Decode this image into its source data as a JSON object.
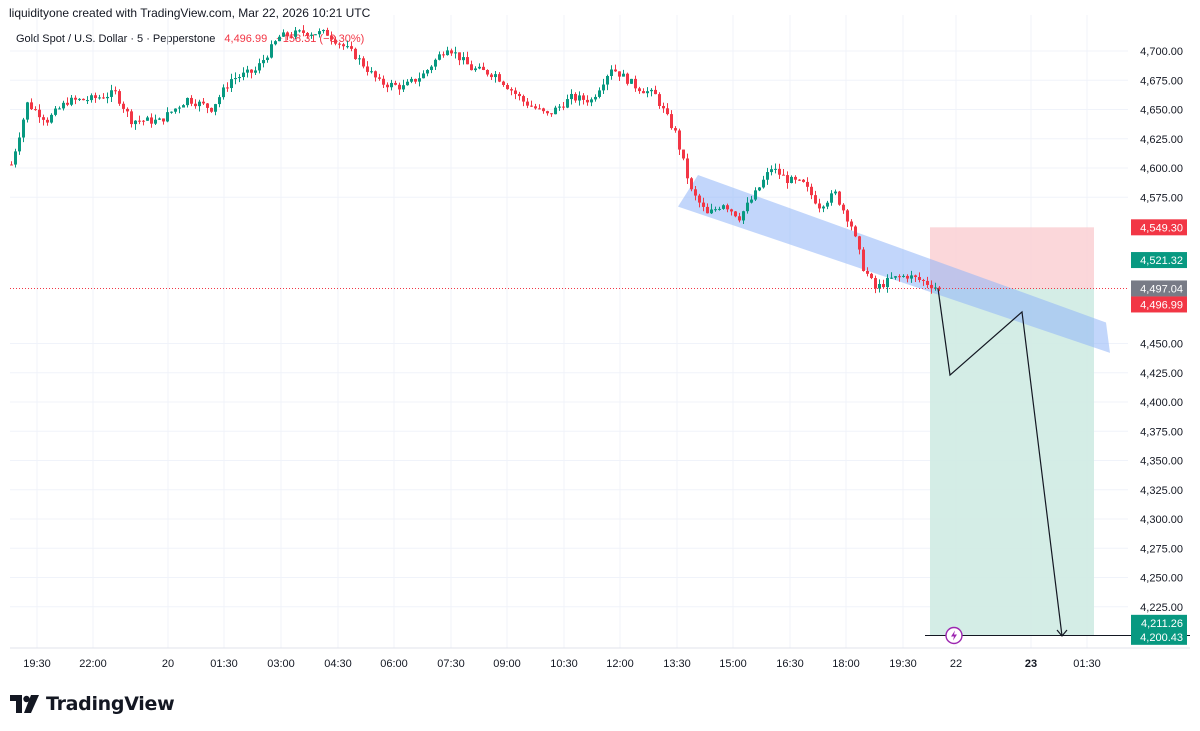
{
  "header": {
    "credit": "liquidityone created with TradingView.com, Mar 22, 2026 10:21 UTC",
    "symbol": "Gold Spot / U.S. Dollar · 5 · Pepperstone",
    "last_price": "4,496.99",
    "change": "−158.31 (−3.30%)"
  },
  "brand": {
    "name": "TradingView",
    "logo_icon": "tradingview-logo-icon"
  },
  "colors": {
    "up": "#089981",
    "down": "#f23645",
    "channel": "#90b4f7",
    "target_zone": "#cfebe3",
    "stop_zone": "#fbd3d6",
    "current_price": "#f23645"
  },
  "chart_data": {
    "type": "candlestick",
    "title": "Gold Spot / U.S. Dollar · 5 · Pepperstone",
    "x_tick_labels": [
      "19:30",
      "22:00",
      "20",
      "01:30",
      "03:00",
      "04:30",
      "06:00",
      "07:30",
      "09:00",
      "10:30",
      "12:00",
      "13:30",
      "15:00",
      "16:30",
      "18:00",
      "19:30",
      "22",
      "23",
      "01:30"
    ],
    "y_tick_labels": [
      "4,700.00",
      "4,675.00",
      "4,650.00",
      "4,625.00",
      "4,600.00",
      "4,575.00",
      "4,450.00",
      "4,425.00",
      "4,400.00",
      "4,375.00",
      "4,350.00",
      "4,325.00",
      "4,300.00",
      "4,275.00",
      "4,250.00",
      "4,225.00"
    ],
    "y_ticks": [
      4700,
      4675,
      4650,
      4625,
      4600,
      4575,
      4450,
      4425,
      4400,
      4375,
      4350,
      4325,
      4300,
      4275,
      4250,
      4225
    ],
    "ylim": [
      4186,
      4722
    ],
    "price_path": [
      {
        "x": 0,
        "y": 4603
      },
      {
        "x": 4,
        "y": 4655
      },
      {
        "x": 9,
        "y": 4641
      },
      {
        "x": 14,
        "y": 4657
      },
      {
        "x": 20,
        "y": 4659
      },
      {
        "x": 26,
        "y": 4664
      },
      {
        "x": 30,
        "y": 4641
      },
      {
        "x": 37,
        "y": 4640
      },
      {
        "x": 44,
        "y": 4659
      },
      {
        "x": 50,
        "y": 4651
      },
      {
        "x": 55,
        "y": 4676
      },
      {
        "x": 61,
        "y": 4683
      },
      {
        "x": 67,
        "y": 4712
      },
      {
        "x": 73,
        "y": 4716
      },
      {
        "x": 79,
        "y": 4715
      },
      {
        "x": 86,
        "y": 4696
      },
      {
        "x": 92,
        "y": 4673
      },
      {
        "x": 98,
        "y": 4669
      },
      {
        "x": 103,
        "y": 4680
      },
      {
        "x": 109,
        "y": 4704
      },
      {
        "x": 115,
        "y": 4685
      },
      {
        "x": 121,
        "y": 4680
      },
      {
        "x": 128,
        "y": 4657
      },
      {
        "x": 134,
        "y": 4645
      },
      {
        "x": 140,
        "y": 4660
      },
      {
        "x": 145,
        "y": 4658
      },
      {
        "x": 150,
        "y": 4686
      },
      {
        "x": 156,
        "y": 4670
      },
      {
        "x": 161,
        "y": 4662
      },
      {
        "x": 166,
        "y": 4630
      },
      {
        "x": 170,
        "y": 4580
      },
      {
        "x": 174,
        "y": 4560
      },
      {
        "x": 178,
        "y": 4570
      },
      {
        "x": 182,
        "y": 4558
      },
      {
        "x": 186,
        "y": 4578
      },
      {
        "x": 190,
        "y": 4600
      },
      {
        "x": 194,
        "y": 4590
      },
      {
        "x": 198,
        "y": 4586
      },
      {
        "x": 202,
        "y": 4568
      },
      {
        "x": 206,
        "y": 4578
      },
      {
        "x": 210,
        "y": 4551
      },
      {
        "x": 213,
        "y": 4515
      },
      {
        "x": 216,
        "y": 4497
      },
      {
        "x": 220,
        "y": 4505
      },
      {
        "x": 224,
        "y": 4508
      },
      {
        "x": 228,
        "y": 4503
      },
      {
        "x": 232,
        "y": 4497
      }
    ],
    "current_price": 4496.99,
    "channel": {
      "upper": [
        {
          "x": 172,
          "y": 4594
        },
        {
          "x": 274,
          "y": 4468
        }
      ],
      "lower": [
        {
          "x": 167,
          "y": 4567
        },
        {
          "x": 275,
          "y": 4442
        }
      ]
    },
    "projection": [
      {
        "x": 232,
        "y": 4497
      },
      {
        "x": 235,
        "y": 4423
      },
      {
        "x": 253,
        "y": 4477
      },
      {
        "x": 263,
        "y": 4200
      }
    ],
    "position": {
      "entry": 4496.99,
      "stop": 4549.3,
      "target": 4200.43,
      "x_start": 230,
      "x_end": 271
    },
    "price_labels": [
      {
        "text": "4,549.30",
        "value": 4549.3,
        "color": "#f23645"
      },
      {
        "text": "4,521.32",
        "value": 4521.32,
        "color": "#089981"
      },
      {
        "text": "4,497.04",
        "value": 4497.04,
        "color": "#787b86"
      },
      {
        "text": "4,496.99",
        "value": 4496.99,
        "color": "#f23645"
      },
      {
        "text": "4,211.26",
        "value": 4211.26,
        "color": "#089981"
      },
      {
        "text": "4,200.43",
        "value": 4200.43,
        "color": "#089981"
      }
    ]
  }
}
